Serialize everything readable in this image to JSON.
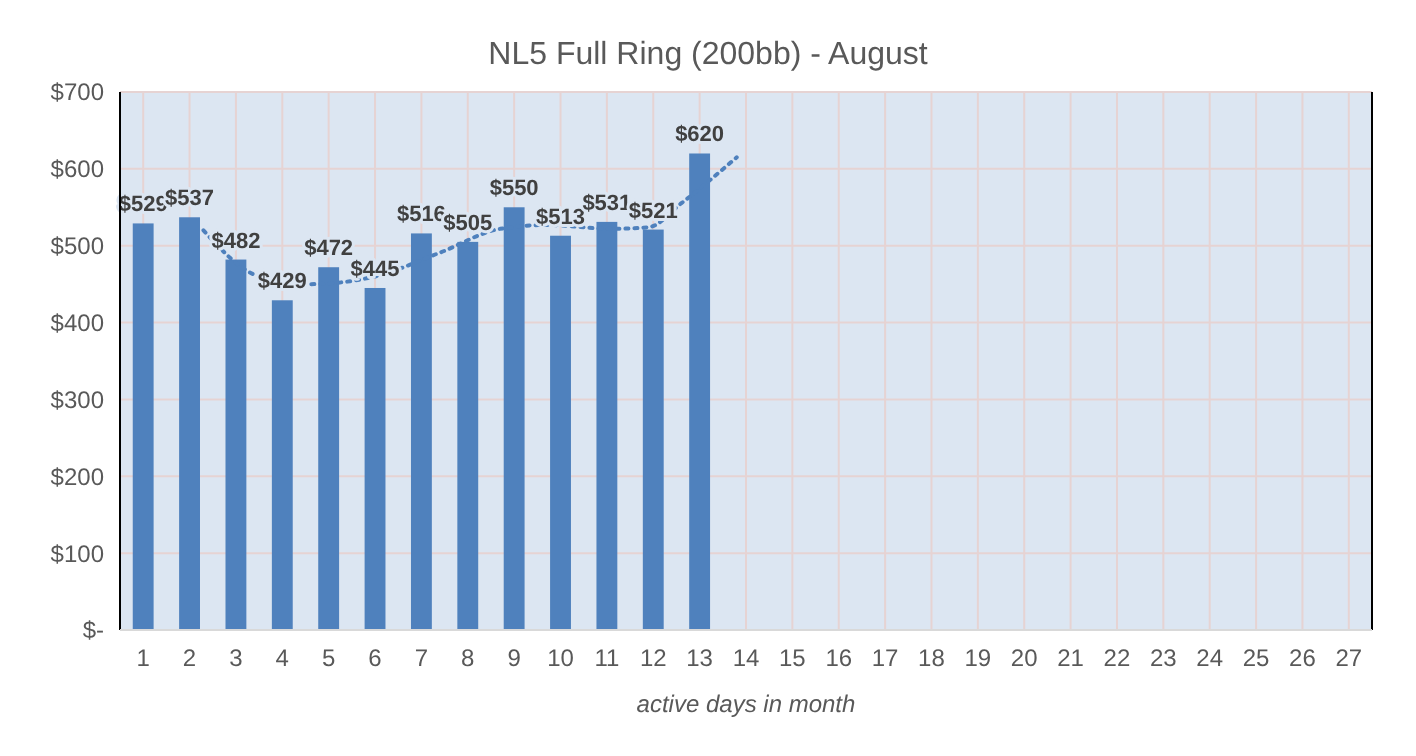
{
  "chart_data": {
    "type": "bar",
    "title": "NL5 Full Ring (200bb) - August",
    "xlabel": "active days in month",
    "x": [
      1,
      2,
      3,
      4,
      5,
      6,
      7,
      8,
      9,
      10,
      11,
      12,
      13
    ],
    "xlim": [
      0.5,
      27.5
    ],
    "xticks": [
      1,
      2,
      3,
      4,
      5,
      6,
      7,
      8,
      9,
      10,
      11,
      12,
      13,
      14,
      15,
      16,
      17,
      18,
      19,
      20,
      21,
      22,
      23,
      24,
      25,
      26,
      27
    ],
    "ylim": [
      0,
      700
    ],
    "yticks": [
      {
        "value": 0,
        "label": "$-"
      },
      {
        "value": 100,
        "label": "$100"
      },
      {
        "value": 200,
        "label": "$200"
      },
      {
        "value": 300,
        "label": "$300"
      },
      {
        "value": 400,
        "label": "$400"
      },
      {
        "value": 500,
        "label": "$500"
      },
      {
        "value": 600,
        "label": "$600"
      },
      {
        "value": 700,
        "label": "$700"
      }
    ],
    "grid": true,
    "series": [
      {
        "color": "#4f81bd",
        "values": [
          529,
          537,
          482,
          429,
          472,
          445,
          516,
          505,
          550,
          513,
          531,
          521,
          620
        ],
        "value_labels": [
          "$529",
          "$537",
          "$482",
          "$429",
          "$472",
          "$445",
          "$516",
          "$505",
          "$550",
          "$513",
          "$531",
          "$521",
          "$620"
        ]
      },
      {
        "type": "line",
        "color": "#4f81bd",
        "line_style": "dotted",
        "x": [
          2.3,
          3.5,
          4.6,
          6,
          7.4,
          8.7,
          9.7,
          11.1,
          11.9,
          12.6,
          13.8
        ],
        "values": [
          520,
          460,
          450,
          460,
          491,
          522,
          527,
          522,
          524,
          555,
          615
        ]
      }
    ]
  }
}
